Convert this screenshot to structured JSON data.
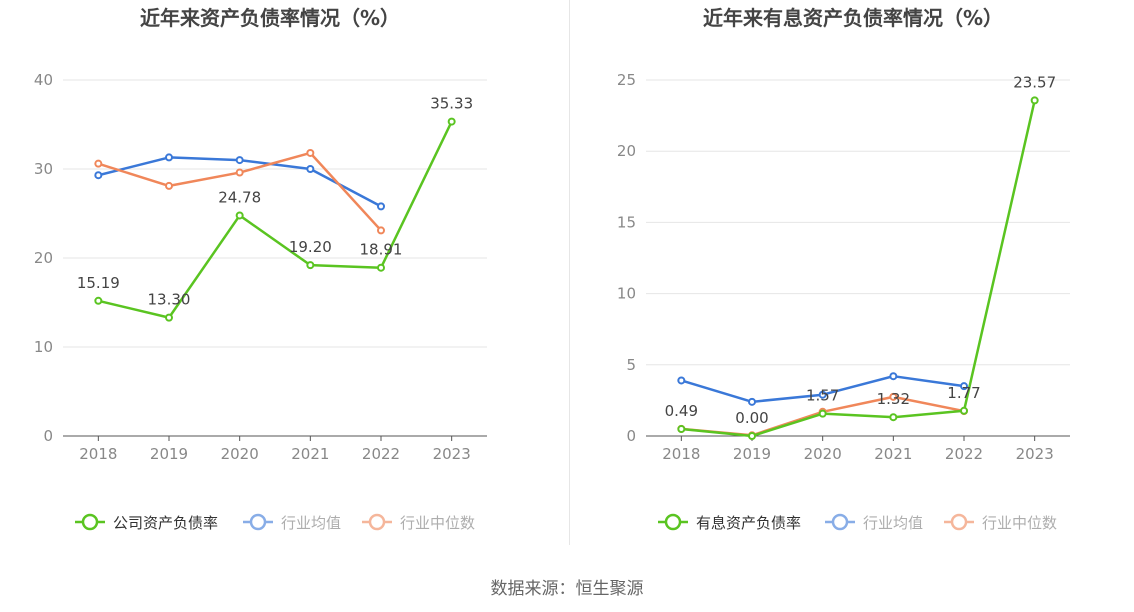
{
  "source_text": "数据来源：恒生聚源",
  "chart_data": [
    {
      "type": "line",
      "title": "近年来资产负债率情况（%）",
      "categories": [
        "2018",
        "2019",
        "2020",
        "2021",
        "2022",
        "2023"
      ],
      "ylim": [
        0,
        40
      ],
      "yticks": [
        0,
        10,
        20,
        30,
        40
      ],
      "grid": true,
      "legend_position": "bottom",
      "series": [
        {
          "name": "公司资产负债率",
          "color": "#5ac421",
          "values": [
            15.19,
            13.3,
            24.78,
            19.2,
            18.91,
            35.33
          ],
          "labels": [
            "15.19",
            "13.30",
            "24.78",
            "19.20",
            "18.91",
            "35.33"
          ]
        },
        {
          "name": "行业均值",
          "color": "#3a78d8",
          "values": [
            29.3,
            31.3,
            31.0,
            30.0,
            25.8,
            null
          ]
        },
        {
          "name": "行业中位数",
          "color": "#f0875a",
          "values": [
            30.6,
            28.1,
            29.6,
            31.8,
            23.1,
            null
          ]
        }
      ]
    },
    {
      "type": "line",
      "title": "近年来有息资产负债率情况（%）",
      "categories": [
        "2018",
        "2019",
        "2020",
        "2021",
        "2022",
        "2023"
      ],
      "ylim": [
        0,
        25
      ],
      "yticks": [
        0,
        5,
        10,
        15,
        20,
        25
      ],
      "grid": true,
      "legend_position": "bottom",
      "series": [
        {
          "name": "有息资产负债率",
          "color": "#5ac421",
          "values": [
            0.49,
            0.0,
            1.57,
            1.32,
            1.77,
            23.57
          ],
          "labels": [
            "0.49",
            "0.00",
            "1.57",
            "1.32",
            "1.77",
            "23.57"
          ]
        },
        {
          "name": "行业均值",
          "color": "#3a78d8",
          "values": [
            3.9,
            2.4,
            2.9,
            4.2,
            3.5,
            null
          ]
        },
        {
          "name": "行业中位数",
          "color": "#f0875a",
          "values": [
            0.5,
            0.05,
            1.7,
            2.75,
            1.75,
            null
          ]
        }
      ]
    }
  ]
}
